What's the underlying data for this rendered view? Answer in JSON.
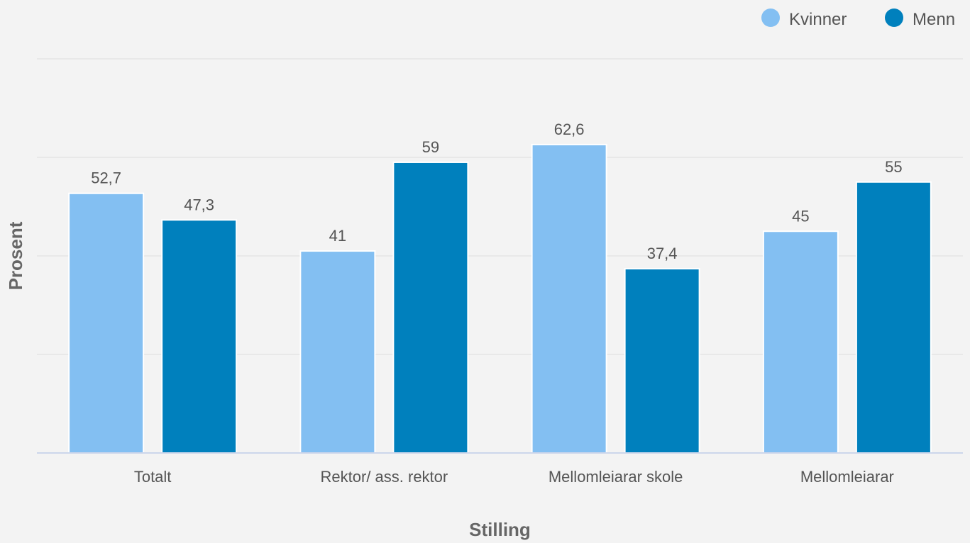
{
  "chart_data": {
    "type": "bar",
    "categories": [
      "Totalt",
      "Rektor/ ass. rektor",
      "Mellomleiarar skole",
      "Mellomleiarar"
    ],
    "series": [
      {
        "name": "Kvinner",
        "values": [
          52.7,
          41,
          62.6,
          45
        ],
        "labels": [
          "52,7",
          "41",
          "62,6",
          "45"
        ],
        "color": "#83bff2"
      },
      {
        "name": "Menn",
        "values": [
          47.3,
          59,
          37.4,
          55
        ],
        "labels": [
          "47,3",
          "59",
          "37,4",
          "55"
        ],
        "color": "#0080bd"
      }
    ],
    "xlabel": "Stilling",
    "ylabel": "Prosent",
    "ylim": [
      0,
      80
    ],
    "y_tick_labels_shown": false,
    "grid": true,
    "legend_position": "top-right"
  }
}
